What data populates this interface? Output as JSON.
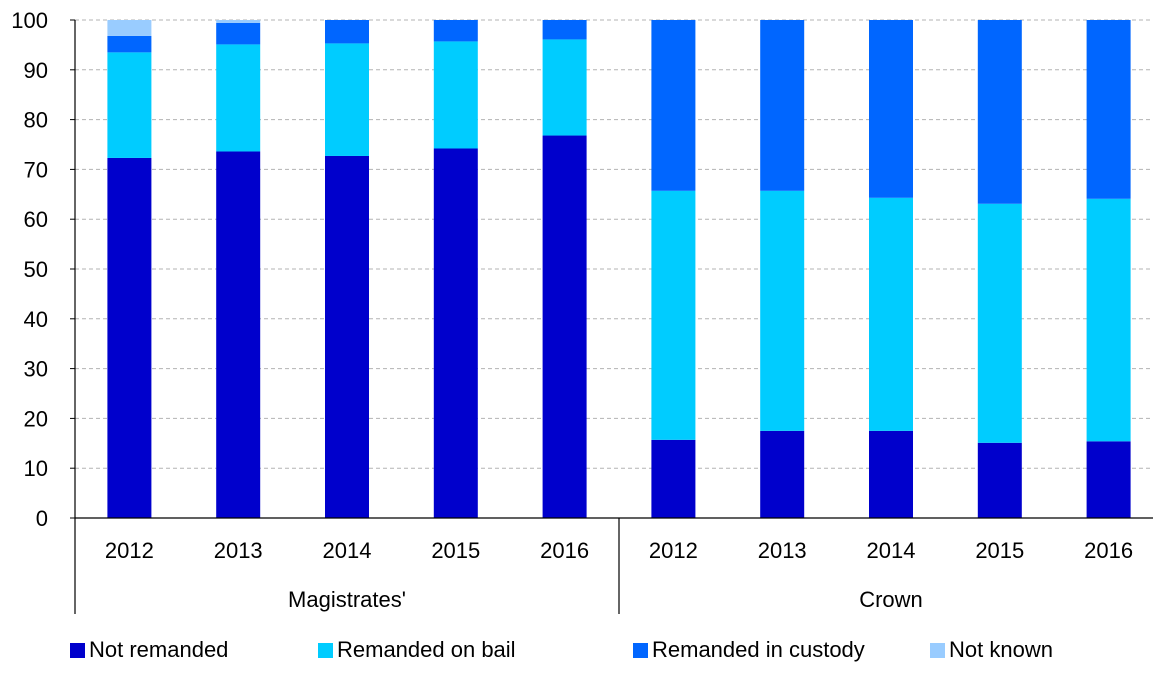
{
  "chart_data": {
    "type": "bar",
    "stacked": true,
    "groups": [
      {
        "name": "Magistrates'",
        "categories": [
          "2012",
          "2013",
          "2014",
          "2015",
          "2016"
        ]
      },
      {
        "name": "Crown",
        "categories": [
          "2012",
          "2013",
          "2014",
          "2015",
          "2016"
        ]
      }
    ],
    "series": [
      {
        "name": "Not remanded",
        "color": "#0000CC",
        "values": [
          72.3,
          73.6,
          72.7,
          74.2,
          76.8,
          15.7,
          17.5,
          17.5,
          15.1,
          15.4
        ]
      },
      {
        "name": "Remanded on bail",
        "color": "#00CCFF",
        "values": [
          21.2,
          21.5,
          22.6,
          21.5,
          19.3,
          50.0,
          48.2,
          46.8,
          48.0,
          48.7
        ]
      },
      {
        "name": "Remanded in custody",
        "color": "#0066FF",
        "values": [
          3.3,
          4.3,
          4.7,
          4.3,
          3.9,
          34.3,
          34.3,
          35.7,
          36.9,
          35.9
        ]
      },
      {
        "name": "Not known",
        "color": "#99CCFF",
        "values": [
          3.2,
          0.6,
          0.0,
          0.0,
          0.0,
          0.0,
          0.0,
          0.0,
          0.0,
          0.0
        ]
      }
    ],
    "ylim": [
      0,
      100
    ],
    "yticks": [
      0,
      10,
      20,
      30,
      40,
      50,
      60,
      70,
      80,
      90,
      100
    ],
    "grid": true,
    "legend": "bottom"
  }
}
